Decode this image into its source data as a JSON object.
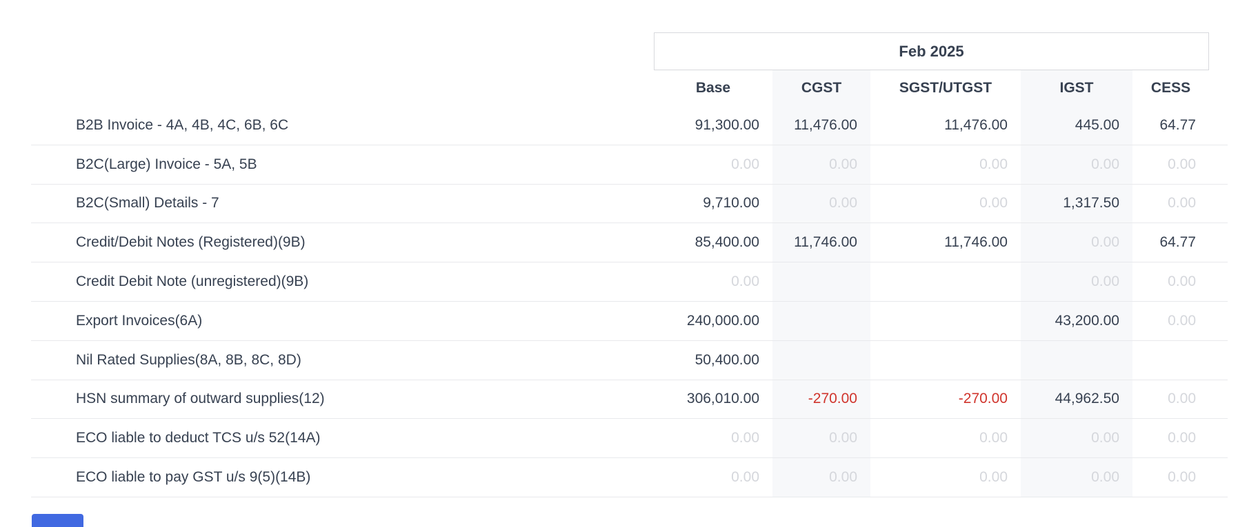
{
  "report": {
    "period": "Feb 2025",
    "columns": [
      {
        "label": "Base"
      },
      {
        "label": "CGST"
      },
      {
        "label": "SGST/UTGST"
      },
      {
        "label": "IGST"
      },
      {
        "label": "CESS"
      }
    ],
    "rows": [
      {
        "label": "B2B Invoice - 4A, 4B, 4C, 6B, 6C",
        "cells": [
          {
            "v": "91,300.00",
            "s": "normal"
          },
          {
            "v": "11,476.00",
            "s": "normal"
          },
          {
            "v": "11,476.00",
            "s": "normal"
          },
          {
            "v": "445.00",
            "s": "normal"
          },
          {
            "v": "64.77",
            "s": "normal"
          }
        ]
      },
      {
        "label": "B2C(Large) Invoice - 5A, 5B",
        "cells": [
          {
            "v": "0.00",
            "s": "muted"
          },
          {
            "v": "0.00",
            "s": "muted"
          },
          {
            "v": "0.00",
            "s": "muted"
          },
          {
            "v": "0.00",
            "s": "muted"
          },
          {
            "v": "0.00",
            "s": "muted"
          }
        ]
      },
      {
        "label": "B2C(Small) Details - 7",
        "cells": [
          {
            "v": "9,710.00",
            "s": "normal"
          },
          {
            "v": "0.00",
            "s": "muted"
          },
          {
            "v": "0.00",
            "s": "muted"
          },
          {
            "v": "1,317.50",
            "s": "normal"
          },
          {
            "v": "0.00",
            "s": "muted"
          }
        ]
      },
      {
        "label": "Credit/Debit Notes (Registered)(9B)",
        "cells": [
          {
            "v": "85,400.00",
            "s": "normal"
          },
          {
            "v": "11,746.00",
            "s": "normal"
          },
          {
            "v": "11,746.00",
            "s": "normal"
          },
          {
            "v": "0.00",
            "s": "muted"
          },
          {
            "v": "64.77",
            "s": "normal"
          }
        ]
      },
      {
        "label": "Credit Debit Note (unregistered)(9B)",
        "cells": [
          {
            "v": "0.00",
            "s": "muted"
          },
          {
            "v": "",
            "s": "blank"
          },
          {
            "v": "",
            "s": "blank"
          },
          {
            "v": "0.00",
            "s": "muted"
          },
          {
            "v": "0.00",
            "s": "muted"
          }
        ]
      },
      {
        "label": "Export Invoices(6A)",
        "cells": [
          {
            "v": "240,000.00",
            "s": "normal"
          },
          {
            "v": "",
            "s": "blank"
          },
          {
            "v": "",
            "s": "blank"
          },
          {
            "v": "43,200.00",
            "s": "normal"
          },
          {
            "v": "0.00",
            "s": "muted"
          }
        ]
      },
      {
        "label": "Nil Rated Supplies(8A, 8B, 8C, 8D)",
        "cells": [
          {
            "v": "50,400.00",
            "s": "normal"
          },
          {
            "v": "",
            "s": "blank"
          },
          {
            "v": "",
            "s": "blank"
          },
          {
            "v": "",
            "s": "blank"
          },
          {
            "v": "",
            "s": "blank"
          }
        ]
      },
      {
        "label": "HSN summary of outward supplies(12)",
        "cells": [
          {
            "v": "306,010.00",
            "s": "normal"
          },
          {
            "v": "-270.00",
            "s": "neg"
          },
          {
            "v": "-270.00",
            "s": "neg"
          },
          {
            "v": "44,962.50",
            "s": "normal"
          },
          {
            "v": "0.00",
            "s": "muted"
          }
        ]
      },
      {
        "label": "ECO liable to deduct TCS u/s 52(14A)",
        "cells": [
          {
            "v": "0.00",
            "s": "muted"
          },
          {
            "v": "0.00",
            "s": "muted"
          },
          {
            "v": "0.00",
            "s": "muted"
          },
          {
            "v": "0.00",
            "s": "muted"
          },
          {
            "v": "0.00",
            "s": "muted"
          }
        ]
      },
      {
        "label": "ECO liable to pay GST u/s 9(5)(14B)",
        "cells": [
          {
            "v": "0.00",
            "s": "muted"
          },
          {
            "v": "0.00",
            "s": "muted"
          },
          {
            "v": "0.00",
            "s": "muted"
          },
          {
            "v": "0.00",
            "s": "muted"
          },
          {
            "v": "0.00",
            "s": "muted"
          }
        ]
      }
    ]
  },
  "colors": {
    "text_dark": "#374151",
    "text_muted": "#d5d7dc",
    "negative_red": "#d0342c",
    "column_band": "#f7f8fa",
    "divider": "#e8e9ec",
    "box_border": "#d8d9dd",
    "partial_element_blue": "#4169e1"
  }
}
